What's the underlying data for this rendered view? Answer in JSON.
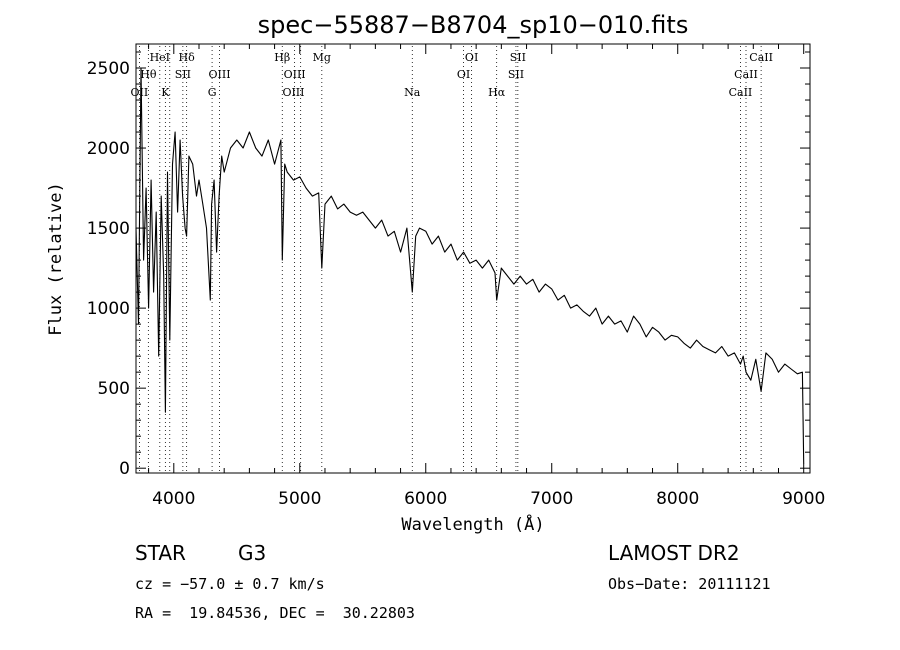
{
  "chart_data": {
    "type": "line",
    "title": "spec−55887−B8704_sp10−010.fits",
    "xlabel": "Wavelength (Å)",
    "ylabel": "Flux (relative)",
    "xlim": [
      3700,
      9050
    ],
    "ylim": [
      -30,
      2650
    ],
    "xticks": [
      4000,
      5000,
      6000,
      7000,
      8000,
      9000
    ],
    "yticks": [
      0,
      500,
      1000,
      1500,
      2000,
      2500
    ],
    "grid": false,
    "series": [
      {
        "x": [
          3700,
          3720,
          3740,
          3760,
          3780,
          3800,
          3820,
          3840,
          3860,
          3880,
          3900,
          3920,
          3933,
          3950,
          3968,
          3990,
          4010,
          4030,
          4050,
          4070,
          4090,
          4102,
          4120,
          4150,
          4180,
          4200,
          4230,
          4260,
          4290,
          4300,
          4320,
          4340,
          4360,
          4380,
          4400,
          4450,
          4500,
          4550,
          4600,
          4650,
          4700,
          4750,
          4800,
          4850,
          4861,
          4880,
          4900,
          4950,
          5000,
          5050,
          5100,
          5150,
          5175,
          5200,
          5250,
          5300,
          5350,
          5400,
          5450,
          5500,
          5550,
          5600,
          5650,
          5700,
          5750,
          5800,
          5850,
          5893,
          5920,
          5950,
          6000,
          6050,
          6100,
          6150,
          6200,
          6250,
          6300,
          6350,
          6400,
          6450,
          6500,
          6550,
          6563,
          6600,
          6650,
          6700,
          6750,
          6800,
          6850,
          6900,
          6950,
          7000,
          7050,
          7100,
          7150,
          7200,
          7250,
          7300,
          7350,
          7400,
          7450,
          7500,
          7550,
          7600,
          7650,
          7700,
          7750,
          7800,
          7850,
          7900,
          7950,
          8000,
          8050,
          8100,
          8150,
          8200,
          8250,
          8300,
          8350,
          8400,
          8450,
          8498,
          8520,
          8542,
          8580,
          8620,
          8662,
          8700,
          8750,
          8800,
          8850,
          8900,
          8950,
          8990,
          9000
        ],
        "y": [
          1500,
          900,
          2500,
          1300,
          1750,
          1000,
          1800,
          1100,
          1600,
          700,
          1700,
          1200,
          350,
          1850,
          800,
          1900,
          2100,
          1600,
          2050,
          1700,
          1500,
          1450,
          1950,
          1900,
          1700,
          1800,
          1650,
          1500,
          1050,
          1650,
          1800,
          1350,
          1700,
          1950,
          1850,
          2000,
          2050,
          2000,
          2100,
          2000,
          1950,
          2050,
          1900,
          2050,
          1300,
          1900,
          1850,
          1800,
          1820,
          1750,
          1700,
          1720,
          1250,
          1650,
          1700,
          1620,
          1650,
          1600,
          1580,
          1600,
          1550,
          1500,
          1550,
          1450,
          1480,
          1350,
          1500,
          1100,
          1450,
          1500,
          1480,
          1400,
          1450,
          1350,
          1400,
          1300,
          1350,
          1280,
          1300,
          1250,
          1300,
          1220,
          1050,
          1250,
          1200,
          1150,
          1200,
          1150,
          1180,
          1100,
          1150,
          1120,
          1050,
          1080,
          1000,
          1020,
          980,
          950,
          1000,
          900,
          950,
          900,
          920,
          850,
          950,
          900,
          820,
          880,
          850,
          800,
          830,
          820,
          780,
          750,
          800,
          760,
          740,
          720,
          760,
          700,
          720,
          650,
          700,
          600,
          550,
          680,
          480,
          720,
          680,
          600,
          650,
          620,
          590,
          600,
          30
        ]
      }
    ],
    "line_labels": [
      {
        "text": "OII",
        "x": 3727,
        "row": 3,
        "anchor": "middle"
      },
      {
        "text": "Hθ",
        "x": 3798,
        "row": 2,
        "anchor": "middle"
      },
      {
        "text": "HeI",
        "x": 3889,
        "row": 1,
        "anchor": "middle"
      },
      {
        "text": "K",
        "x": 3933,
        "row": 3,
        "anchor": "middle"
      },
      {
        "text": "Hδ",
        "x": 4102,
        "row": 1,
        "anchor": "middle"
      },
      {
        "text": "SII",
        "x": 4072,
        "row": 2,
        "anchor": "middle"
      },
      {
        "text": "OIII",
        "x": 4363,
        "row": 2,
        "anchor": "middle"
      },
      {
        "text": "G",
        "x": 4304,
        "row": 3,
        "anchor": "middle"
      },
      {
        "text": "Hβ",
        "x": 4861,
        "row": 1,
        "anchor": "middle"
      },
      {
        "text": "OIII",
        "x": 4959,
        "row": 2,
        "anchor": "middle"
      },
      {
        "text": "OIII",
        "x": 4950,
        "row": 3,
        "anchor": "middle"
      },
      {
        "text": "Mg",
        "x": 5175,
        "row": 1,
        "anchor": "middle"
      },
      {
        "text": "Na",
        "x": 5893,
        "row": 3,
        "anchor": "middle"
      },
      {
        "text": "OI",
        "x": 6364,
        "row": 1,
        "anchor": "middle"
      },
      {
        "text": "OI",
        "x": 6300,
        "row": 2,
        "anchor": "middle"
      },
      {
        "text": "Hα",
        "x": 6563,
        "row": 3,
        "anchor": "middle"
      },
      {
        "text": "SII",
        "x": 6731,
        "row": 1,
        "anchor": "middle"
      },
      {
        "text": "SII",
        "x": 6716,
        "row": 2,
        "anchor": "middle"
      },
      {
        "text": "CaII",
        "x": 8662,
        "row": 1,
        "anchor": "middle"
      },
      {
        "text": "CaII",
        "x": 8542,
        "row": 2,
        "anchor": "middle"
      },
      {
        "text": "CaII",
        "x": 8498,
        "row": 3,
        "anchor": "middle"
      }
    ],
    "line_markers": [
      3727,
      3798,
      3889,
      3933,
      3968,
      4072,
      4102,
      4304,
      4363,
      4861,
      4959,
      5007,
      5175,
      5893,
      6300,
      6364,
      6563,
      6716,
      6731,
      8498,
      8542,
      8662
    ]
  },
  "info": {
    "object_class": "STAR",
    "subclass": "G3",
    "cz": "cz = −57.0 ± 0.7 km/s",
    "coords": "RA =  19.84536, DEC =  30.22803",
    "survey": "LAMOST DR2",
    "obs_date": "Obs−Date: 20111121"
  }
}
